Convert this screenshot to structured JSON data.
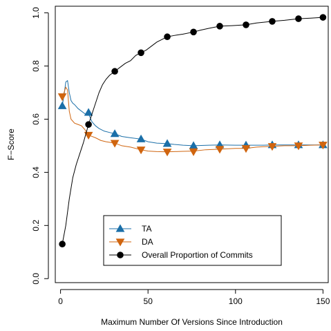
{
  "chart_data": {
    "type": "line",
    "xlabel": "Maximum Number Of Versions Since Introduction",
    "ylabel": "F−Score",
    "xlim": [
      -3,
      153
    ],
    "ylim": [
      -0.015,
      1.025
    ],
    "x_ticks": [
      0,
      50,
      100,
      150
    ],
    "x_tick_labels": [
      "0",
      "50",
      "100",
      "150"
    ],
    "y_ticks": [
      0.0,
      0.2,
      0.4,
      0.6,
      0.8,
      1.0
    ],
    "y_tick_labels": [
      "0.0",
      "0.2",
      "0.4",
      "0.6",
      "0.8",
      "1.0"
    ],
    "grid": false,
    "legend_position": "bottom-center",
    "series": [
      {
        "name": "TA",
        "color": "#1b6fa8",
        "marker": "triangle-up",
        "line": [
          [
            1,
            0.65
          ],
          [
            2,
            0.69
          ],
          [
            3,
            0.74
          ],
          [
            4,
            0.745
          ],
          [
            5,
            0.7
          ],
          [
            6,
            0.67
          ],
          [
            7,
            0.66
          ],
          [
            8,
            0.655
          ],
          [
            10,
            0.64
          ],
          [
            12,
            0.63
          ],
          [
            14,
            0.62
          ],
          [
            16,
            0.62
          ],
          [
            18,
            0.59
          ],
          [
            20,
            0.575
          ],
          [
            22,
            0.565
          ],
          [
            25,
            0.555
          ],
          [
            28,
            0.55
          ],
          [
            31,
            0.545
          ],
          [
            35,
            0.535
          ],
          [
            40,
            0.53
          ],
          [
            46,
            0.525
          ],
          [
            50,
            0.515
          ],
          [
            55,
            0.51
          ],
          [
            61,
            0.508
          ],
          [
            65,
            0.505
          ],
          [
            70,
            0.502
          ],
          [
            76,
            0.5
          ],
          [
            85,
            0.502
          ],
          [
            91,
            0.503
          ],
          [
            100,
            0.502
          ],
          [
            106,
            0.502
          ],
          [
            115,
            0.502
          ],
          [
            121,
            0.503
          ],
          [
            130,
            0.503
          ],
          [
            136,
            0.503
          ],
          [
            145,
            0.503
          ],
          [
            150,
            0.503
          ]
        ],
        "markers": [
          [
            1,
            0.65
          ],
          [
            16,
            0.625
          ],
          [
            31,
            0.545
          ],
          [
            46,
            0.525
          ],
          [
            61,
            0.508
          ],
          [
            76,
            0.5
          ],
          [
            91,
            0.503
          ],
          [
            106,
            0.502
          ],
          [
            121,
            0.503
          ],
          [
            136,
            0.503
          ],
          [
            150,
            0.503
          ]
        ]
      },
      {
        "name": "DA",
        "color": "#d0650f",
        "marker": "triangle-down",
        "line": [
          [
            1,
            0.68
          ],
          [
            2,
            0.7
          ],
          [
            3,
            0.72
          ],
          [
            4,
            0.71
          ],
          [
            5,
            0.63
          ],
          [
            6,
            0.6
          ],
          [
            8,
            0.585
          ],
          [
            10,
            0.58
          ],
          [
            12,
            0.575
          ],
          [
            14,
            0.56
          ],
          [
            16,
            0.54
          ],
          [
            18,
            0.535
          ],
          [
            20,
            0.53
          ],
          [
            23,
            0.52
          ],
          [
            26,
            0.515
          ],
          [
            31,
            0.51
          ],
          [
            35,
            0.5
          ],
          [
            40,
            0.495
          ],
          [
            46,
            0.485
          ],
          [
            50,
            0.48
          ],
          [
            55,
            0.478
          ],
          [
            61,
            0.477
          ],
          [
            65,
            0.478
          ],
          [
            70,
            0.479
          ],
          [
            76,
            0.48
          ],
          [
            83,
            0.485
          ],
          [
            91,
            0.487
          ],
          [
            100,
            0.49
          ],
          [
            106,
            0.49
          ],
          [
            112,
            0.495
          ],
          [
            121,
            0.498
          ],
          [
            128,
            0.5
          ],
          [
            136,
            0.5
          ],
          [
            143,
            0.502
          ],
          [
            150,
            0.503
          ]
        ],
        "markers": [
          [
            1,
            0.685
          ],
          [
            16,
            0.54
          ],
          [
            31,
            0.51
          ],
          [
            46,
            0.485
          ],
          [
            61,
            0.477
          ],
          [
            76,
            0.478
          ],
          [
            91,
            0.487
          ],
          [
            106,
            0.49
          ],
          [
            121,
            0.498
          ],
          [
            136,
            0.5
          ],
          [
            150,
            0.503
          ]
        ]
      },
      {
        "name": "Overall Proportion of Commits",
        "color": "#000000",
        "marker": "circle",
        "line": [
          [
            1,
            0.13
          ],
          [
            3,
            0.2
          ],
          [
            5,
            0.3
          ],
          [
            7,
            0.38
          ],
          [
            9,
            0.43
          ],
          [
            11,
            0.47
          ],
          [
            13,
            0.51
          ],
          [
            16,
            0.58
          ],
          [
            18,
            0.62
          ],
          [
            20,
            0.66
          ],
          [
            22,
            0.7
          ],
          [
            24,
            0.73
          ],
          [
            26,
            0.75
          ],
          [
            28,
            0.765
          ],
          [
            31,
            0.78
          ],
          [
            34,
            0.795
          ],
          [
            37,
            0.81
          ],
          [
            40,
            0.82
          ],
          [
            43,
            0.84
          ],
          [
            46,
            0.85
          ],
          [
            49,
            0.86
          ],
          [
            52,
            0.875
          ],
          [
            55,
            0.89
          ],
          [
            58,
            0.9
          ],
          [
            61,
            0.91
          ],
          [
            65,
            0.915
          ],
          [
            70,
            0.92
          ],
          [
            76,
            0.928
          ],
          [
            80,
            0.935
          ],
          [
            85,
            0.942
          ],
          [
            91,
            0.95
          ],
          [
            98,
            0.952
          ],
          [
            106,
            0.955
          ],
          [
            112,
            0.962
          ],
          [
            121,
            0.968
          ],
          [
            128,
            0.972
          ],
          [
            136,
            0.978
          ],
          [
            143,
            0.98
          ],
          [
            150,
            0.983
          ]
        ],
        "markers": [
          [
            1,
            0.13
          ],
          [
            16,
            0.58
          ],
          [
            31,
            0.78
          ],
          [
            46,
            0.85
          ],
          [
            61,
            0.91
          ],
          [
            76,
            0.928
          ],
          [
            91,
            0.95
          ],
          [
            106,
            0.955
          ],
          [
            121,
            0.968
          ],
          [
            136,
            0.978
          ],
          [
            150,
            0.983
          ]
        ]
      }
    ]
  }
}
